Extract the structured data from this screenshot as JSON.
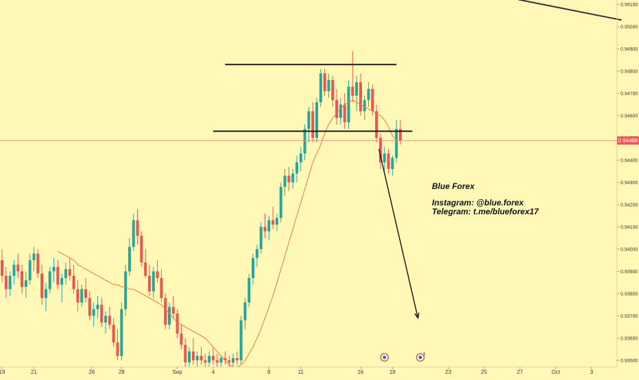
{
  "colors": {
    "background": "#fff8b6",
    "bull": "#26a69a",
    "bear": "#ef5350",
    "ma_line": "#f5763a",
    "price_line": "#f08a80",
    "price_tag_bg": "#ef5350",
    "price_tag_text": "#ffffff",
    "axis_text": "#3a3a3a",
    "drawing": "#1c1c1c"
  },
  "chart_data": {
    "type": "candlestick",
    "ylim": [
      0.9347,
      0.9512
    ],
    "y_ticks": [
      "0.95100",
      "0.95000",
      "0.94900",
      "0.94800",
      "0.94700",
      "0.94600",
      "0.94500",
      "0.94400",
      "0.94300",
      "0.94200",
      "0.94100",
      "0.94000",
      "0.93900",
      "0.93800",
      "0.93700",
      "0.93600",
      "0.93500"
    ],
    "x_ticks": [
      "19",
      "21",
      "26",
      "28",
      "Sep",
      "4",
      "9",
      "11",
      "16",
      "18",
      "23",
      "25",
      "27",
      "Oct",
      "3"
    ],
    "current_price": {
      "value": 0.94488,
      "label": "0.94488"
    },
    "ohlc": [
      [
        0.9395,
        0.94,
        0.9385,
        0.9388
      ],
      [
        0.9388,
        0.9392,
        0.9378,
        0.9382
      ],
      [
        0.9382,
        0.939,
        0.9379,
        0.9388
      ],
      [
        0.9388,
        0.9395,
        0.9384,
        0.9393
      ],
      [
        0.9393,
        0.9398,
        0.9387,
        0.939
      ],
      [
        0.939,
        0.9393,
        0.938,
        0.9383
      ],
      [
        0.9383,
        0.939,
        0.9378,
        0.9386
      ],
      [
        0.9386,
        0.9398,
        0.9384,
        0.9395
      ],
      [
        0.9395,
        0.9401,
        0.939,
        0.9398
      ],
      [
        0.9398,
        0.94,
        0.9387,
        0.9389
      ],
      [
        0.9389,
        0.9393,
        0.9375,
        0.9378
      ],
      [
        0.9378,
        0.9385,
        0.9372,
        0.9382
      ],
      [
        0.9382,
        0.9392,
        0.938,
        0.939
      ],
      [
        0.939,
        0.9396,
        0.9385,
        0.9392
      ],
      [
        0.9392,
        0.9395,
        0.9382,
        0.9384
      ],
      [
        0.9384,
        0.9389,
        0.9376,
        0.9387
      ],
      [
        0.9387,
        0.9394,
        0.9384,
        0.9391
      ],
      [
        0.9391,
        0.9396,
        0.9386,
        0.9388
      ],
      [
        0.9388,
        0.9393,
        0.938,
        0.9382
      ],
      [
        0.9382,
        0.9386,
        0.9372,
        0.9376
      ],
      [
        0.9376,
        0.9384,
        0.9374,
        0.9382
      ],
      [
        0.9382,
        0.9387,
        0.9376,
        0.9378
      ],
      [
        0.9378,
        0.9381,
        0.9368,
        0.937
      ],
      [
        0.937,
        0.9376,
        0.9365,
        0.9373
      ],
      [
        0.9373,
        0.9379,
        0.9369,
        0.9375
      ],
      [
        0.9375,
        0.9378,
        0.9365,
        0.9367
      ],
      [
        0.9367,
        0.9372,
        0.9362,
        0.937
      ],
      [
        0.937,
        0.9374,
        0.9364,
        0.9366
      ],
      [
        0.9366,
        0.9369,
        0.9356,
        0.9358
      ],
      [
        0.9358,
        0.9364,
        0.935,
        0.9352
      ],
      [
        0.9352,
        0.9376,
        0.935,
        0.9373
      ],
      [
        0.9373,
        0.9393,
        0.937,
        0.939
      ],
      [
        0.939,
        0.9405,
        0.9388,
        0.9401
      ],
      [
        0.9401,
        0.9416,
        0.9399,
        0.9413
      ],
      [
        0.9413,
        0.9418,
        0.9402,
        0.9406
      ],
      [
        0.9406,
        0.9408,
        0.9392,
        0.9394
      ],
      [
        0.9394,
        0.94,
        0.9387,
        0.9388
      ],
      [
        0.9388,
        0.9393,
        0.9379,
        0.9381
      ],
      [
        0.9381,
        0.9392,
        0.9378,
        0.939
      ],
      [
        0.939,
        0.9395,
        0.9385,
        0.9387
      ],
      [
        0.9387,
        0.9391,
        0.9376,
        0.9378
      ],
      [
        0.9378,
        0.938,
        0.9364,
        0.9366
      ],
      [
        0.9366,
        0.9376,
        0.9364,
        0.9374
      ],
      [
        0.9374,
        0.9379,
        0.9369,
        0.9371
      ],
      [
        0.9371,
        0.9373,
        0.936,
        0.9362
      ],
      [
        0.9362,
        0.9366,
        0.9355,
        0.9357
      ],
      [
        0.9357,
        0.936,
        0.9347,
        0.9349
      ],
      [
        0.9349,
        0.9356,
        0.9347,
        0.9354
      ],
      [
        0.9354,
        0.936,
        0.9348,
        0.935
      ],
      [
        0.935,
        0.9354,
        0.9347,
        0.9352
      ],
      [
        0.9352,
        0.9356,
        0.9348,
        0.935
      ],
      [
        0.935,
        0.9353,
        0.9347,
        0.9349
      ],
      [
        0.9349,
        0.9354,
        0.9347,
        0.9352
      ],
      [
        0.9352,
        0.9356,
        0.9348,
        0.935
      ],
      [
        0.935,
        0.9353,
        0.9347,
        0.9349
      ],
      [
        0.9349,
        0.9352,
        0.9347,
        0.9351
      ],
      [
        0.9351,
        0.9354,
        0.9348,
        0.935
      ],
      [
        0.935,
        0.9352,
        0.9347,
        0.9349
      ],
      [
        0.9349,
        0.9353,
        0.9347,
        0.9351
      ],
      [
        0.9351,
        0.9354,
        0.9348,
        0.935
      ],
      [
        0.935,
        0.937,
        0.9348,
        0.9368
      ],
      [
        0.9368,
        0.9378,
        0.9364,
        0.9376
      ],
      [
        0.9376,
        0.9389,
        0.9374,
        0.9387
      ],
      [
        0.9387,
        0.9398,
        0.9384,
        0.9396
      ],
      [
        0.9396,
        0.9402,
        0.9392,
        0.94
      ],
      [
        0.94,
        0.9412,
        0.9398,
        0.941
      ],
      [
        0.941,
        0.9416,
        0.9405,
        0.9408
      ],
      [
        0.9408,
        0.9415,
        0.9404,
        0.9413
      ],
      [
        0.9413,
        0.9419,
        0.9409,
        0.9411
      ],
      [
        0.9411,
        0.9416,
        0.9408,
        0.9414
      ],
      [
        0.9414,
        0.943,
        0.9412,
        0.9428
      ],
      [
        0.9428,
        0.9436,
        0.9424,
        0.9433
      ],
      [
        0.9433,
        0.9437,
        0.9426,
        0.943
      ],
      [
        0.943,
        0.9436,
        0.9427,
        0.9434
      ],
      [
        0.9434,
        0.9442,
        0.943,
        0.9439
      ],
      [
        0.9439,
        0.9446,
        0.9435,
        0.9443
      ],
      [
        0.9443,
        0.9456,
        0.944,
        0.9454
      ],
      [
        0.9454,
        0.9464,
        0.9448,
        0.9462
      ],
      [
        0.9462,
        0.9466,
        0.9448,
        0.945
      ],
      [
        0.945,
        0.9468,
        0.9448,
        0.9466
      ],
      [
        0.9466,
        0.9481,
        0.9464,
        0.9479
      ],
      [
        0.9479,
        0.9481,
        0.9469,
        0.9471
      ],
      [
        0.9471,
        0.9479,
        0.9468,
        0.9476
      ],
      [
        0.9476,
        0.9478,
        0.9464,
        0.9467
      ],
      [
        0.9467,
        0.9472,
        0.9456,
        0.9459
      ],
      [
        0.9459,
        0.9468,
        0.9456,
        0.9465
      ],
      [
        0.9465,
        0.947,
        0.9454,
        0.9457
      ],
      [
        0.9457,
        0.9476,
        0.9454,
        0.9473
      ],
      [
        0.9473,
        0.9489,
        0.9466,
        0.9469
      ],
      [
        0.9469,
        0.9478,
        0.9462,
        0.9475
      ],
      [
        0.9475,
        0.9479,
        0.946,
        0.9462
      ],
      [
        0.9462,
        0.9469,
        0.9458,
        0.9467
      ],
      [
        0.9467,
        0.9475,
        0.9464,
        0.9472
      ],
      [
        0.9472,
        0.9474,
        0.946,
        0.9462
      ],
      [
        0.9462,
        0.9465,
        0.9448,
        0.945
      ],
      [
        0.945,
        0.9452,
        0.9436,
        0.9439
      ],
      [
        0.9439,
        0.9446,
        0.9435,
        0.9443
      ],
      [
        0.9443,
        0.9445,
        0.9434,
        0.9436
      ],
      [
        0.9436,
        0.9442,
        0.9433,
        0.9441
      ],
      [
        0.9441,
        0.9458,
        0.9439,
        0.9454
      ],
      [
        0.9454,
        0.9458,
        0.9447,
        0.94488
      ]
    ],
    "ma": [
      0.9399,
      0.9398,
      0.9397,
      0.9396,
      0.9395,
      0.9393,
      0.9392,
      0.9391,
      0.939,
      0.9389,
      0.9388,
      0.9387,
      0.9386,
      0.9385,
      0.9384,
      0.9384,
      0.9383,
      0.9383,
      0.9382,
      0.9382,
      0.9381,
      0.938,
      0.9379,
      0.9378,
      0.9377,
      0.9376,
      0.9375,
      0.9373,
      0.9371,
      0.9369,
      0.9367,
      0.9366,
      0.9365,
      0.9364,
      0.9363,
      0.9362,
      0.9361,
      0.936,
      0.9358,
      0.9356,
      0.9354,
      0.9352,
      0.935,
      0.9348,
      0.9347,
      0.9347,
      0.9348,
      0.935,
      0.9353,
      0.9356,
      0.936,
      0.9364,
      0.9369,
      0.9374,
      0.9379,
      0.9385,
      0.9391,
      0.9397,
      0.9403,
      0.9409,
      0.9415,
      0.9421,
      0.9427,
      0.9433,
      0.9439,
      0.9443,
      0.9447,
      0.9452,
      0.9456,
      0.9459,
      0.9461,
      0.9463,
      0.9465,
      0.9466,
      0.9467,
      0.9466,
      0.9465,
      0.9464,
      0.9463,
      0.9462,
      0.9461,
      0.946,
      0.9458,
      0.9455,
      0.9451,
      0.9449
    ],
    "ma_start_index": 14,
    "horizontal_lines": [
      {
        "name": "resistance-line",
        "y": 0.9483,
        "x_from": 56,
        "x_to": 99
      },
      {
        "name": "neckline",
        "y": 0.9453,
        "x_from": 53,
        "x_to": 103
      }
    ],
    "arrow": {
      "from": [
        94.6,
        0.9445
      ],
      "to": [
        104.4,
        0.9369
      ]
    },
    "trend_segment": {
      "from": [
        129.6,
        0.95122
      ],
      "to": [
        155.5,
        0.9503
      ]
    },
    "x_tick_positions": [
      0,
      8,
      22.5,
      30,
      44,
      53,
      67,
      75,
      90,
      98,
      112,
      121,
      130,
      139,
      148
    ],
    "event_markers": [
      {
        "x": 96,
        "label": ""
      },
      {
        "x": 105,
        "label": "3"
      }
    ]
  },
  "annotation": {
    "title": "Blue Forex",
    "line1": "Instagram: @blue.forex",
    "line2": "Telegram: t.me/blueforex17"
  }
}
